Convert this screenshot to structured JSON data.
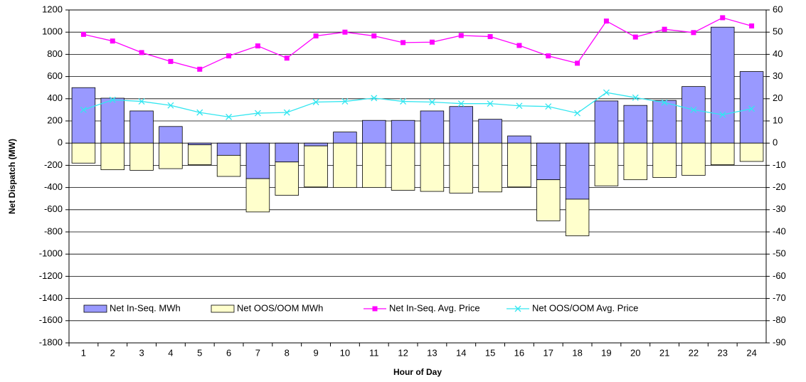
{
  "chart_data": {
    "type": "bar",
    "x_label": "Hour of Day",
    "y_label": "Net Dispatch (MW)",
    "categories": [
      "1",
      "2",
      "3",
      "4",
      "5",
      "6",
      "7",
      "8",
      "9",
      "10",
      "11",
      "12",
      "13",
      "14",
      "15",
      "16",
      "17",
      "18",
      "19",
      "20",
      "21",
      "22",
      "23",
      "24"
    ],
    "series": [
      {
        "name": "Net In-Seq. MWh",
        "type": "bar",
        "color": "#9999ff",
        "values": [
          500,
          405,
          290,
          150,
          -15,
          -110,
          -320,
          -170,
          -25,
          100,
          205,
          205,
          290,
          330,
          215,
          65,
          -330,
          -505,
          380,
          340,
          385,
          510,
          1045,
          645
        ]
      },
      {
        "name": "Net OOS/OOM MWh",
        "type": "bar",
        "color": "#ffffcc",
        "values": [
          -180,
          -240,
          -245,
          -230,
          -180,
          -190,
          -300,
          -300,
          -370,
          -400,
          -400,
          -425,
          -435,
          -450,
          -440,
          -395,
          -370,
          -330,
          -385,
          -330,
          -310,
          -290,
          -195,
          -165
        ]
      },
      {
        "name": "Net In-Seq. Avg. Price",
        "type": "line",
        "axis": "y2",
        "marker": "square",
        "color": "#ff00ff",
        "values": [
          49,
          46,
          40.8,
          36.8,
          33.3,
          39.3,
          43.8,
          38.3,
          48.3,
          50,
          48.3,
          45.3,
          45.5,
          48.5,
          48,
          44,
          39.3,
          36,
          55,
          47.8,
          51.3,
          49.8,
          56.5,
          52.8
        ]
      },
      {
        "name": "Net OOS/OOM Avg. Price",
        "type": "line",
        "axis": "y2",
        "marker": "x",
        "color": "#33e6f0",
        "values": [
          15,
          19.5,
          18.8,
          17,
          13.8,
          11.8,
          13.5,
          13.8,
          18.5,
          18.8,
          20.3,
          18.8,
          18.5,
          17.8,
          17.8,
          16.8,
          16.5,
          13.5,
          22.8,
          20.5,
          18.3,
          15,
          12.8,
          15.5
        ]
      }
    ],
    "ylim": [
      -1800,
      1200
    ],
    "yticks": [
      -1800,
      -1600,
      -1400,
      -1200,
      -1000,
      -800,
      -600,
      -400,
      -200,
      0,
      200,
      400,
      600,
      800,
      1000,
      1200
    ],
    "y2lim": [
      -90,
      60
    ],
    "y2ticks": [
      -90,
      -80,
      -70,
      -60,
      -50,
      -40,
      -30,
      -20,
      -10,
      0,
      10,
      20,
      30,
      40,
      50,
      60
    ],
    "grid": true,
    "legend": "bottom-left"
  }
}
